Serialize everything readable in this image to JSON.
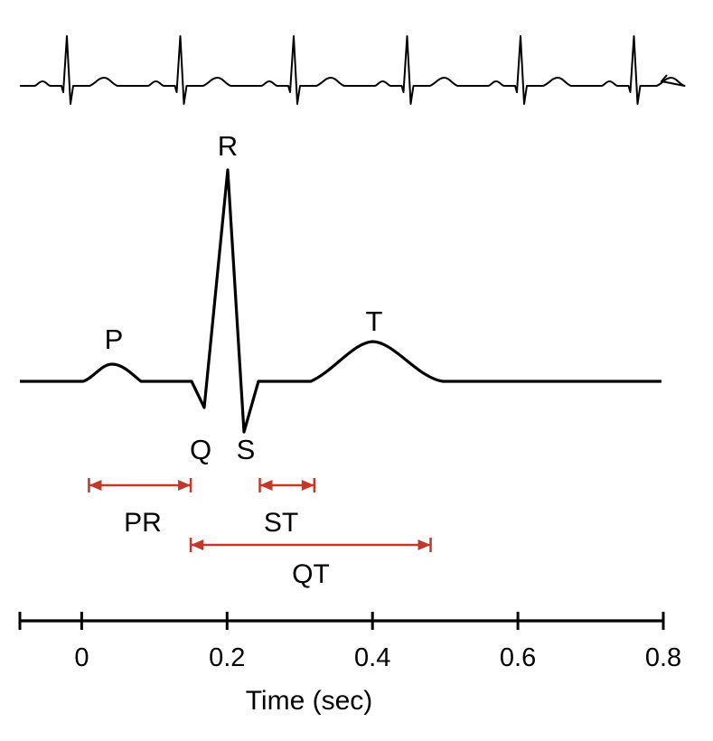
{
  "colors": {
    "trace": "#000000",
    "interval": "#c0392b",
    "background": "#ffffff"
  },
  "waves": [
    {
      "id": "P",
      "label": "P"
    },
    {
      "id": "Q",
      "label": "Q"
    },
    {
      "id": "R",
      "label": "R"
    },
    {
      "id": "S",
      "label": "S"
    },
    {
      "id": "T",
      "label": "T"
    }
  ],
  "intervals": [
    {
      "id": "PR",
      "label": "PR",
      "start": 0.01,
      "end": 0.15
    },
    {
      "id": "ST",
      "label": "ST",
      "start": 0.245,
      "end": 0.32
    },
    {
      "id": "QT",
      "label": "QT",
      "start": 0.15,
      "end": 0.48
    }
  ],
  "axis": {
    "label": "Time (sec)",
    "min": -0.085,
    "max": 0.8,
    "ticks": [
      {
        "value": 0,
        "label": "0"
      },
      {
        "value": 0.2,
        "label": "0.2"
      },
      {
        "value": 0.4,
        "label": "0.4"
      },
      {
        "value": 0.6,
        "label": "0.6"
      },
      {
        "value": 0.8,
        "label": "0.8"
      }
    ]
  },
  "rhythm_strip": {
    "beat_count": 6
  }
}
